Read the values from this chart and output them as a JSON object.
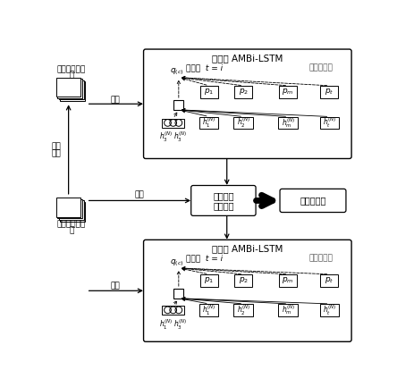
{
  "bg_color": "#ffffff",
  "generator_title": "生成器 AMBi-LSTM",
  "discriminator_title": "鉴别器 AMBi-LSTM",
  "decoder_text": "解码器  t = i",
  "attention_text": "注意力机制",
  "reconstruct_loss": "重建损失",
  "discriminate_loss": "鉴别损失",
  "discriminator_loss": "鉴别器损失",
  "random_data_line1": "随机潜在数据",
  "random_data_line2": "集",
  "sample_data_line1": "样本训练数据",
  "sample_data_line2": "集",
  "back_map_line1": "反向",
  "back_map_line2": "映射",
  "input_text": "输入",
  "p_labels": [
    "$p_1$",
    "$p_2$",
    "$p_m$",
    "$p_t$"
  ],
  "h_labels_gen": [
    "$h_1^{(N)}$",
    "$h_2^{(N)}$",
    "$h_m^{(N)}$",
    "$h_t^{(N)}$"
  ],
  "h_labels_dis": [
    "$h_1^{(N)}$",
    "$h_2^{(N)}$",
    "$h_m^{(N)}$",
    "$h_t^{(N)}$"
  ],
  "h_bottom_gen_l": "$h_3^{(N)}$",
  "h_bottom_gen_r": "$h_3^{(N)}$",
  "h_bottom_dis_l": "$h_1^{(N)}$",
  "h_bottom_dis_r": "$h_3^{(N)}$",
  "q_label": "$q_{(c)}$"
}
